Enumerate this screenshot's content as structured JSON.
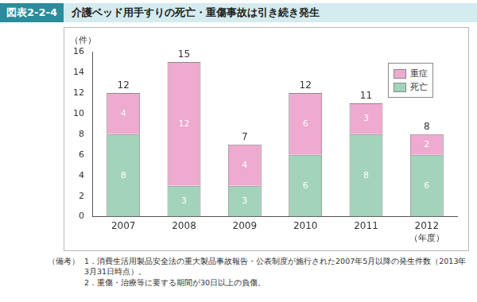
{
  "chart_data": {
    "type": "bar",
    "figure_label": "図表2-2-4",
    "title": "介護ベッド用手すりの死亡・重傷事故は引き続き発生",
    "categories": [
      "2007",
      "2008",
      "2009",
      "2010",
      "2011",
      "2012"
    ],
    "series": [
      {
        "name": "死亡",
        "color": "#a3d3bb",
        "values": [
          8,
          3,
          3,
          6,
          8,
          6
        ]
      },
      {
        "name": "重症",
        "color": "#eeaacf",
        "values": [
          4,
          12,
          4,
          6,
          3,
          2
        ]
      }
    ],
    "totals": [
      12,
      15,
      7,
      12,
      11,
      8
    ],
    "stacked": true,
    "data_labels": true,
    "ylim": [
      0,
      16
    ],
    "yticks": [
      0,
      2,
      4,
      6,
      8,
      10,
      12,
      14,
      16
    ],
    "grid": false,
    "legend": "upper right",
    "ylabel": "（件）",
    "xlabel": "（年度）",
    "notes_label": "（備考）",
    "notes": [
      "1．消費生活用製品安全法の重大製品事故報告・公表制度が施行された2007年5月以降の発生件数（2013年3月31日時点）。",
      "2．重傷・治療等に要する期間が30日以上の負傷。"
    ]
  }
}
